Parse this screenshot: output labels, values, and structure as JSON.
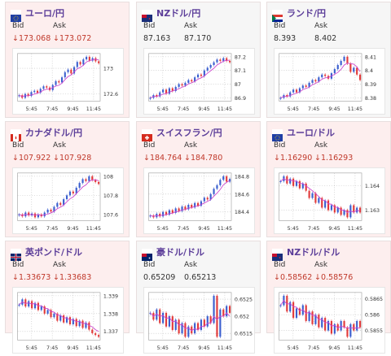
{
  "labels": {
    "bid": "Bid",
    "ask": "Ask"
  },
  "colors": {
    "up": "#3b5fcf",
    "down": "#e23b3b",
    "ma": "#cc44cc",
    "title": "#5b3d99",
    "downText": "#c0392b"
  },
  "cards": [
    {
      "title": "ユーロ/円",
      "flag": "eu-flag-icon",
      "trend": "down",
      "bid": "↓173.068",
      "ask": "↓173.072",
      "chart_data": {
        "type": "candlestick",
        "x_ticks": [
          "5:45",
          "7:45",
          "9:45",
          "11:45"
        ],
        "y_ticks": [
          "173",
          "172.6"
        ],
        "closes": [
          172.58,
          172.54,
          172.6,
          172.57,
          172.63,
          172.65,
          172.62,
          172.68,
          172.72,
          172.7,
          172.66,
          172.74,
          172.8,
          172.78,
          172.86,
          172.94,
          172.98,
          172.92,
          173.02,
          173.1,
          173.06,
          173.14,
          173.18,
          173.12,
          173.16,
          173.11,
          173.08
        ]
      }
    },
    {
      "title": "NZドル/円",
      "flag": "nz-flag-icon",
      "trend": "up",
      "bid": "87.163",
      "ask": "87.170",
      "chart_data": {
        "type": "candlestick",
        "x_ticks": [
          "5:45",
          "7:45",
          "9:45",
          "11:45"
        ],
        "y_ticks": [
          "87.2",
          "87.1",
          "87",
          "86.9"
        ],
        "closes": [
          86.9,
          86.92,
          86.91,
          86.94,
          86.96,
          86.93,
          86.97,
          86.95,
          86.98,
          87.0,
          86.99,
          87.01,
          87.03,
          87.02,
          87.05,
          87.07,
          87.06,
          87.1,
          87.12,
          87.14,
          87.16,
          87.18,
          87.17,
          87.19,
          87.17,
          87.16
        ]
      }
    },
    {
      "title": "ランド/円",
      "flag": "za-flag-icon",
      "trend": "up",
      "bid": "8.393",
      "ask": "8.402",
      "chart_data": {
        "type": "candlestick",
        "x_ticks": [
          "5:45",
          "7:45",
          "9:45",
          "11:45"
        ],
        "y_ticks": [
          "8.41",
          "8.4",
          "8.39",
          "8.38"
        ],
        "closes": [
          8.38,
          8.382,
          8.381,
          8.384,
          8.386,
          8.384,
          8.387,
          8.389,
          8.388,
          8.391,
          8.393,
          8.392,
          8.395,
          8.397,
          8.396,
          8.394,
          8.398,
          8.401,
          8.404,
          8.407,
          8.41,
          8.405,
          8.399,
          8.402,
          8.397,
          8.393
        ]
      }
    },
    {
      "title": "カナダドル/円",
      "flag": "ca-flag-icon",
      "trend": "down",
      "bid": "↓107.922",
      "ask": "↓107.928",
      "chart_data": {
        "type": "candlestick",
        "x_ticks": [
          "5:45",
          "7:45",
          "9:45",
          "11:45"
        ],
        "y_ticks": [
          "108",
          "107.8",
          "107.6"
        ],
        "closes": [
          107.6,
          107.58,
          107.62,
          107.59,
          107.61,
          107.57,
          107.6,
          107.58,
          107.62,
          107.65,
          107.63,
          107.68,
          107.72,
          107.7,
          107.76,
          107.8,
          107.84,
          107.82,
          107.88,
          107.93,
          107.97,
          107.95,
          108.0,
          107.96,
          107.94,
          107.92
        ]
      }
    },
    {
      "title": "スイスフラン/円",
      "flag": "ch-flag-icon",
      "trend": "down",
      "bid": "↓184.764",
      "ask": "↓184.780",
      "chart_data": {
        "type": "candlestick",
        "x_ticks": [
          "5:45",
          "7:45",
          "9:45",
          "11:45"
        ],
        "y_ticks": [
          "184.8",
          "184.6",
          "184.4"
        ],
        "closes": [
          184.36,
          184.34,
          184.38,
          184.35,
          184.4,
          184.37,
          184.42,
          184.39,
          184.44,
          184.41,
          184.46,
          184.43,
          184.48,
          184.45,
          184.5,
          184.47,
          184.52,
          184.56,
          184.54,
          184.6,
          184.66,
          184.7,
          184.76,
          184.8,
          184.74,
          184.77
        ]
      }
    },
    {
      "title": "ユーロ/ドル",
      "flag": "eu-flag-icon",
      "trend": "down",
      "bid": "↓1.16290",
      "ask": "↓1.16293",
      "chart_data": {
        "type": "candlestick",
        "x_ticks": [
          "5:45",
          "7:45",
          "9:45",
          "11:45"
        ],
        "y_ticks": [
          "1.164",
          "1.163"
        ],
        "closes": [
          1.1642,
          1.1644,
          1.1641,
          1.1643,
          1.164,
          1.1642,
          1.1639,
          1.1641,
          1.1638,
          1.1635,
          1.1637,
          1.1633,
          1.1635,
          1.1631,
          1.1634,
          1.163,
          1.1632,
          1.1629,
          1.1631,
          1.1628,
          1.163,
          1.1627,
          1.1632,
          1.1629,
          1.1631,
          1.1629
        ]
      }
    },
    {
      "title": "英ポンド/ドル",
      "flag": "gb-flag-icon",
      "trend": "down",
      "bid": "↓1.33673",
      "ask": "↓1.33683",
      "chart_data": {
        "type": "candlestick",
        "x_ticks": [
          "5:45",
          "7:45",
          "9:45",
          "11:45"
        ],
        "y_ticks": [
          "1.339",
          "1.338",
          "1.337"
        ],
        "closes": [
          1.3385,
          1.3388,
          1.3384,
          1.3387,
          1.3383,
          1.3386,
          1.3382,
          1.3384,
          1.338,
          1.3382,
          1.3378,
          1.338,
          1.3376,
          1.3379,
          1.3375,
          1.3378,
          1.3374,
          1.3377,
          1.3373,
          1.3376,
          1.3372,
          1.3375,
          1.3371,
          1.3369,
          1.3368,
          1.3367
        ]
      }
    },
    {
      "title": "豪ドル/ドル",
      "flag": "au-flag-icon",
      "trend": "up",
      "bid": "0.65209",
      "ask": "0.65213",
      "chart_data": {
        "type": "candlestick",
        "x_ticks": [
          "5:45",
          "7:45",
          "9:45",
          "11:45"
        ],
        "y_ticks": [
          "0.6525",
          "0.652",
          "0.6515"
        ],
        "closes": [
          0.6521,
          0.6519,
          0.6522,
          0.6518,
          0.6521,
          0.6517,
          0.652,
          0.6516,
          0.6519,
          0.6515,
          0.6518,
          0.6514,
          0.6517,
          0.6515,
          0.6518,
          0.6516,
          0.6519,
          0.6517,
          0.652,
          0.6518,
          0.6526,
          0.6514,
          0.6522,
          0.652,
          0.6523,
          0.6521
        ]
      }
    },
    {
      "title": "NZドル/ドル",
      "flag": "nz-flag-icon",
      "trend": "down",
      "bid": "↓0.58562",
      "ask": "↓0.58576",
      "chart_data": {
        "type": "candlestick",
        "x_ticks": [
          "5:45",
          "7:45",
          "9:45",
          "11:45"
        ],
        "y_ticks": [
          "0.5865",
          "0.586",
          "0.5855"
        ],
        "closes": [
          0.5863,
          0.5866,
          0.5861,
          0.5864,
          0.5859,
          0.5862,
          0.586,
          0.5863,
          0.5858,
          0.5861,
          0.5857,
          0.586,
          0.5856,
          0.5859,
          0.5855,
          0.5858,
          0.5854,
          0.5857,
          0.5855,
          0.5858,
          0.5856,
          0.5853,
          0.5857,
          0.5855,
          0.5858,
          0.5856
        ]
      }
    }
  ]
}
